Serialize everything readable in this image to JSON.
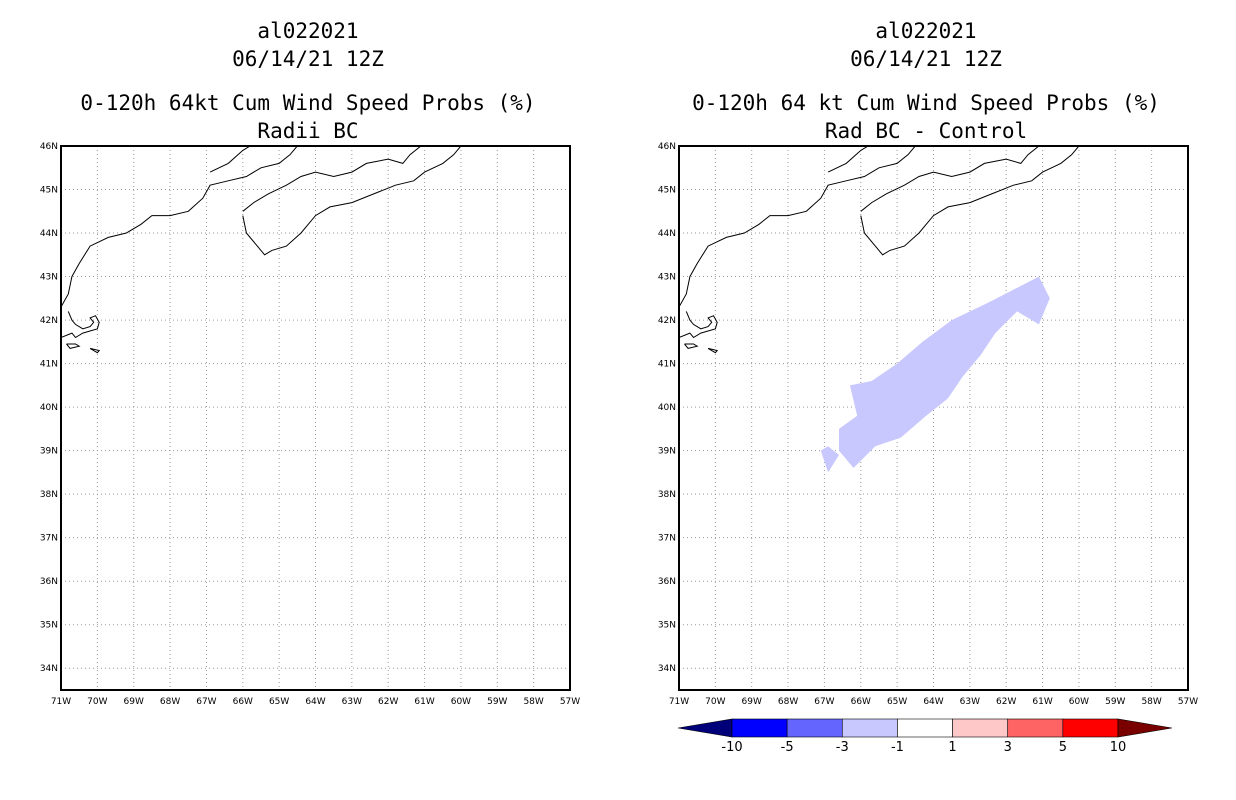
{
  "chart_data": [
    {
      "type": "heatmap",
      "title_lines": [
        "al022021",
        "06/14/21 12Z",
        "0-120h 64kt Cum Wind Speed Probs (%)",
        "Radii BC"
      ],
      "x_ticks": [
        "71W",
        "70W",
        "69W",
        "68W",
        "67W",
        "66W",
        "65W",
        "64W",
        "63W",
        "62W",
        "61W",
        "60W",
        "59W",
        "58W",
        "57W"
      ],
      "y_ticks": [
        "34N",
        "35N",
        "36N",
        "37N",
        "38N",
        "39N",
        "40N",
        "41N",
        "42N",
        "43N",
        "44N",
        "45N",
        "46N"
      ],
      "xlim": [
        -71,
        -57
      ],
      "ylim": [
        33.5,
        46
      ],
      "grid": true,
      "shaded_regions": []
    },
    {
      "type": "heatmap",
      "title_lines": [
        "al022021",
        "06/14/21 12Z",
        "0-120h 64 kt Cum Wind Speed Probs (%)",
        "Rad BC - Control"
      ],
      "x_ticks": [
        "71W",
        "70W",
        "69W",
        "68W",
        "67W",
        "66W",
        "65W",
        "64W",
        "63W",
        "62W",
        "61W",
        "60W",
        "59W",
        "58W",
        "57W"
      ],
      "y_ticks": [
        "34N",
        "35N",
        "36N",
        "37N",
        "38N",
        "39N",
        "40N",
        "41N",
        "42N",
        "43N",
        "44N",
        "45N",
        "46N"
      ],
      "xlim": [
        -71,
        -57
      ],
      "ylim": [
        33.5,
        46
      ],
      "grid": true,
      "shaded_regions": [
        {
          "value_range": "-3 to -1",
          "color": "#c8c8ff",
          "polygon_lonlat": [
            [
              -66.3,
              40.5
            ],
            [
              -65.7,
              40.6
            ],
            [
              -65.0,
              41.0
            ],
            [
              -64.3,
              41.5
            ],
            [
              -63.5,
              42.0
            ],
            [
              -62.5,
              42.4
            ],
            [
              -61.8,
              42.7
            ],
            [
              -61.1,
              43.0
            ],
            [
              -60.8,
              42.5
            ],
            [
              -61.1,
              41.9
            ],
            [
              -61.7,
              42.2
            ],
            [
              -62.3,
              41.7
            ],
            [
              -62.7,
              41.2
            ],
            [
              -63.2,
              40.7
            ],
            [
              -63.6,
              40.2
            ],
            [
              -64.2,
              39.8
            ],
            [
              -64.9,
              39.3
            ],
            [
              -65.6,
              39.1
            ],
            [
              -66.2,
              38.6
            ],
            [
              -66.6,
              39.0
            ],
            [
              -66.6,
              39.5
            ],
            [
              -66.1,
              39.8
            ]
          ]
        },
        {
          "value_range": "-3 to -1",
          "color": "#c8c8ff",
          "polygon_lonlat": [
            [
              -67.1,
              39.0
            ],
            [
              -66.9,
              39.1
            ],
            [
              -66.6,
              38.9
            ],
            [
              -66.9,
              38.5
            ]
          ]
        }
      ]
    }
  ],
  "colorbar": {
    "labels": [
      "-10",
      "-5",
      "-3",
      "-1",
      "1",
      "3",
      "5",
      "10"
    ],
    "colors": [
      "#00007a",
      "#0000ff",
      "#6464ff",
      "#c8c8ff",
      "#ffffff",
      "#ffc8c8",
      "#ff6464",
      "#ff0000",
      "#7a0000"
    ]
  },
  "colors": {
    "land_outline": "#000000",
    "grid": "#9a9a9a"
  }
}
